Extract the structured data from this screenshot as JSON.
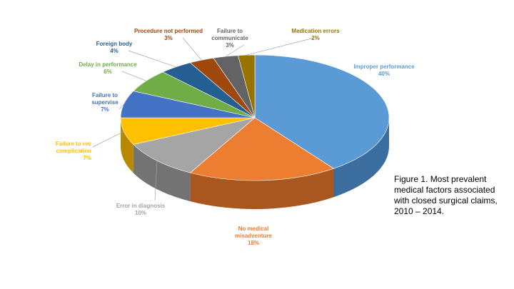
{
  "caption": "Figure 1. Most prevalent medical factors associated with closed surgical claims, 2010 – 2014.",
  "chart_data": {
    "type": "pie",
    "style": "3d-exploded",
    "legend": "none",
    "slices": [
      {
        "lines": [
          "Improper performance",
          "40%"
        ],
        "value": 40,
        "color": "#5B9BD5",
        "side": "#3B6E9E"
      },
      {
        "lines": [
          "No medical",
          "misadventure",
          "18%"
        ],
        "value": 18,
        "color": "#ED7D31",
        "side": "#A9561F"
      },
      {
        "lines": [
          "Error in diagnosis",
          "10%"
        ],
        "value": 10,
        "color": "#A5A5A5",
        "side": "#737373"
      },
      {
        "lines": [
          "Failure to rec",
          "complication",
          "7%"
        ],
        "value": 7,
        "color": "#FFC000",
        "side": "#B88900"
      },
      {
        "lines": [
          "Failure to",
          "supervise",
          "7%"
        ],
        "value": 7,
        "color": "#4472C4",
        "side": "#2E4F8A"
      },
      {
        "lines": [
          "Delay in performance",
          "6%"
        ],
        "value": 6,
        "color": "#70AD47",
        "side": "#4E7A31"
      },
      {
        "lines": [
          "Foreign body",
          "4%"
        ],
        "value": 4,
        "color": "#255E91",
        "side": "#173D5E"
      },
      {
        "lines": [
          "Procedure not performed",
          "3%"
        ],
        "value": 3,
        "color": "#9E480E",
        "side": "#6B3009"
      },
      {
        "lines": [
          "Failure to",
          "communicate",
          "3%"
        ],
        "value": 3,
        "color": "#636363",
        "side": "#404040"
      },
      {
        "lines": [
          "Medication errors",
          "2%"
        ],
        "value": 2,
        "color": "#997300",
        "side": "#665000"
      }
    ]
  }
}
